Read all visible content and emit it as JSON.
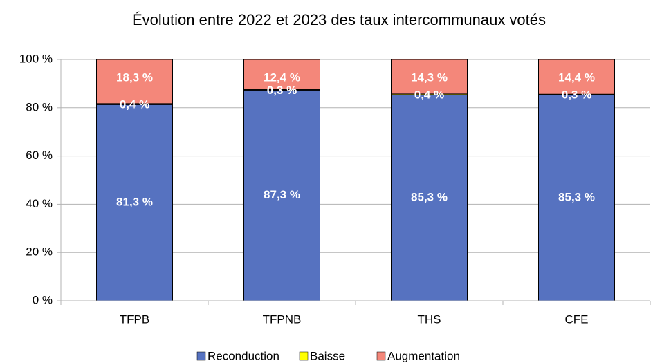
{
  "chart_data": {
    "type": "stacked_bar",
    "title": "Évolution entre 2022 et 2023 des taux intercommunaux votés",
    "categories": [
      "TFPB",
      "TFPNB",
      "THS",
      "CFE"
    ],
    "series": [
      {
        "name": "Reconduction",
        "color": "#5672c0",
        "values": [
          81.3,
          87.3,
          85.3,
          85.3
        ],
        "value_labels": [
          "81,3 %",
          "87,3 %",
          "85,3 %",
          "85,3 %"
        ]
      },
      {
        "name": "Baisse",
        "color": "#ffff00",
        "values": [
          0.4,
          0.3,
          0.4,
          0.3
        ],
        "value_labels": [
          "0,4 %",
          "0,3 %",
          "0,4 %",
          "0,3 %"
        ]
      },
      {
        "name": "Augmentation",
        "color": "#f4877a",
        "values": [
          18.3,
          12.4,
          14.3,
          14.4
        ],
        "value_labels": [
          "18,3 %",
          "12,4 %",
          "14,3 %",
          "14,4 %"
        ]
      }
    ],
    "ylim": [
      0,
      100
    ],
    "yticks": [
      {
        "value": 0,
        "label": "0 %"
      },
      {
        "value": 20,
        "label": "20 %"
      },
      {
        "value": 40,
        "label": "40 %"
      },
      {
        "value": 60,
        "label": "60 %"
      },
      {
        "value": 80,
        "label": "80 %"
      },
      {
        "value": 100,
        "label": "100 %"
      }
    ],
    "grid": true,
    "legend": "bottom"
  }
}
